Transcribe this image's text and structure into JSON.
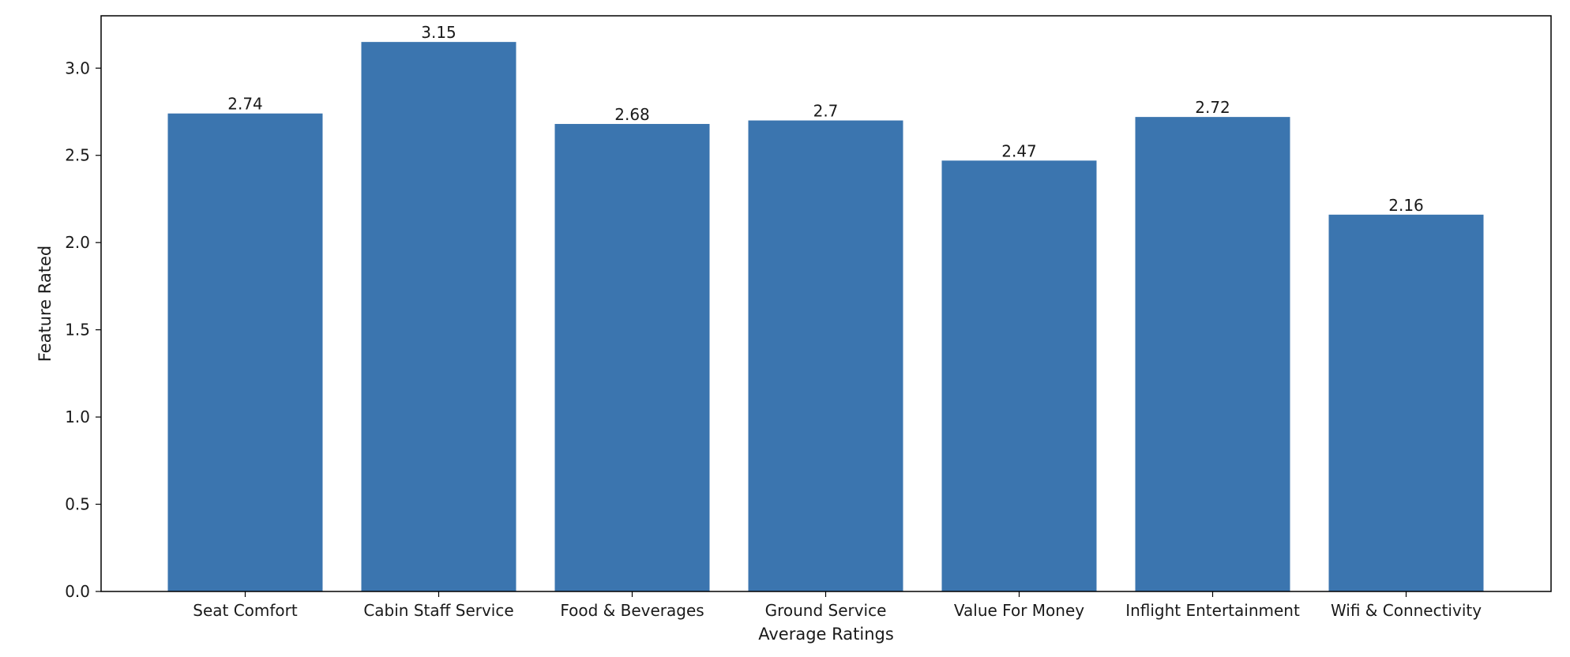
{
  "chart_data": {
    "type": "bar",
    "categories": [
      "Seat Comfort",
      "Cabin Staff Service",
      "Food & Beverages",
      "Ground Service",
      "Value For Money",
      "Inflight Entertainment",
      "Wifi & Connectivity"
    ],
    "values": [
      2.74,
      3.15,
      2.68,
      2.7,
      2.47,
      2.72,
      2.16
    ],
    "value_labels": [
      "2.74",
      "3.15",
      "2.68",
      "2.7",
      "2.47",
      "2.72",
      "2.16"
    ],
    "xlabel": "Average Ratings",
    "ylabel": "Feature Rated",
    "ylim": [
      0,
      3.3
    ],
    "yticks": [
      0.0,
      0.5,
      1.0,
      1.5,
      2.0,
      2.5,
      3.0
    ],
    "ytick_labels": [
      "0.0",
      "0.5",
      "1.0",
      "1.5",
      "2.0",
      "2.5",
      "3.0"
    ],
    "bar_color": "#3b75af",
    "grid": false,
    "legend": "none"
  }
}
